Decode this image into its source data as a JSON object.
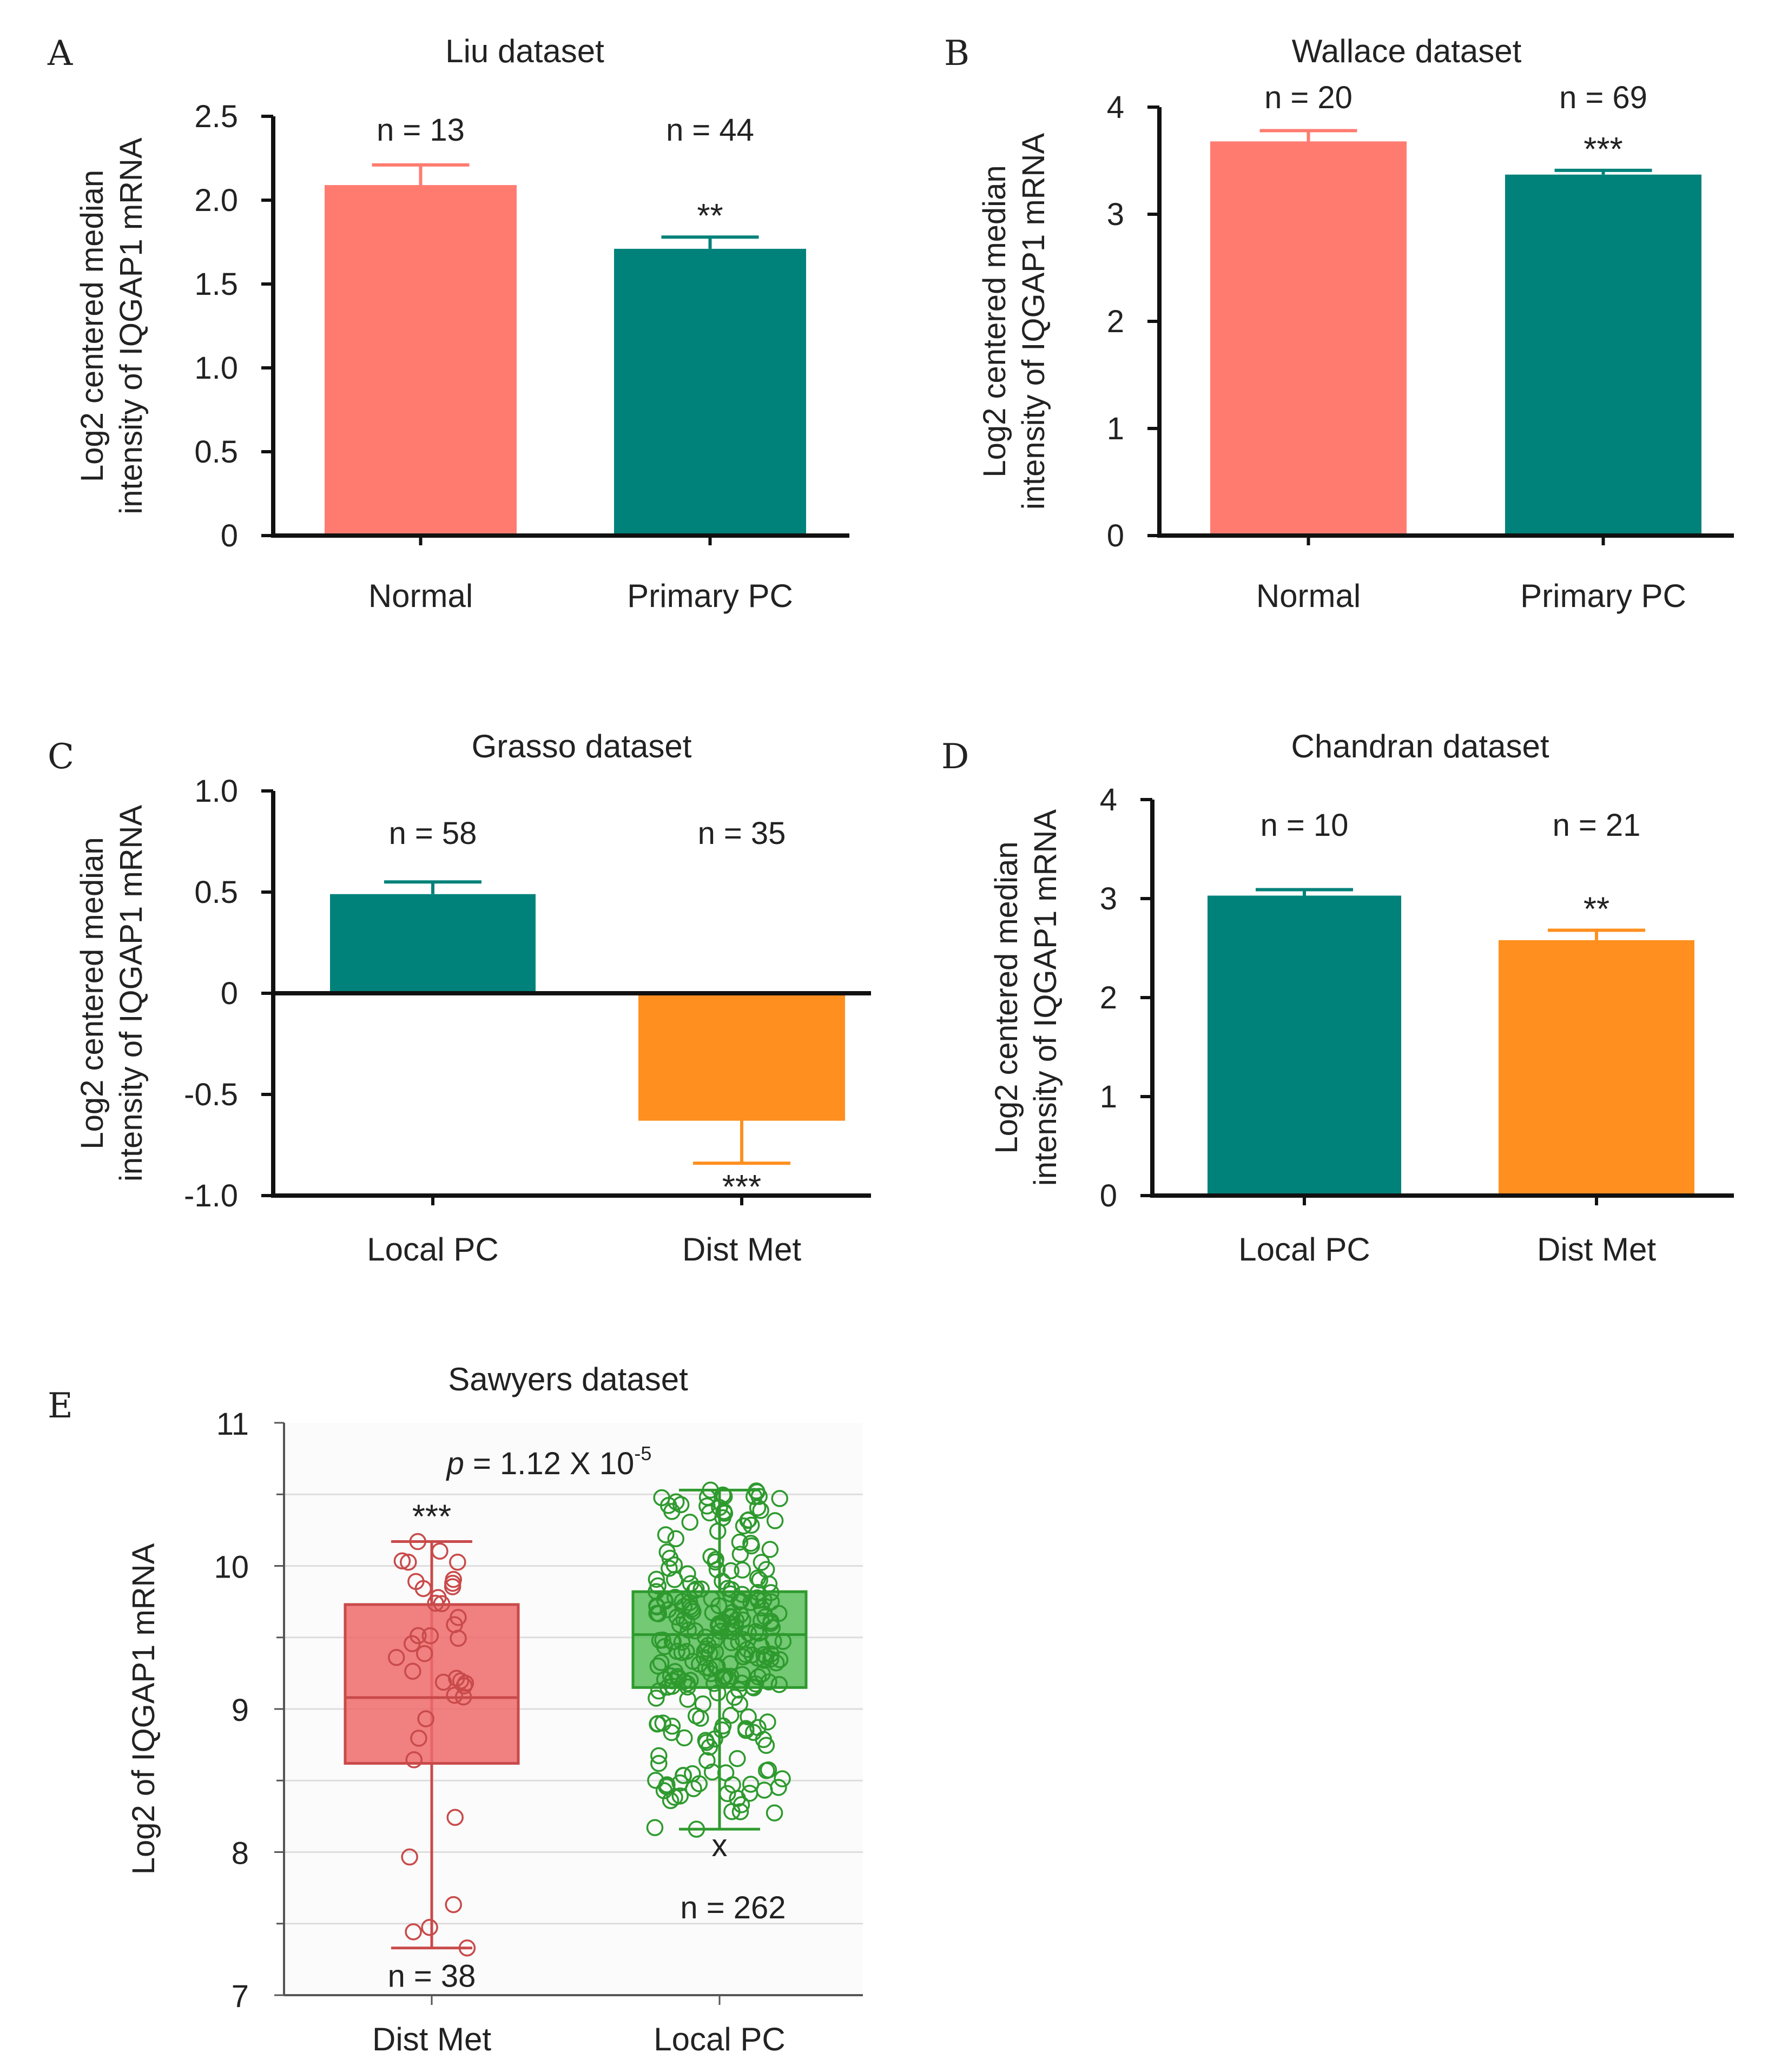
{
  "colors": {
    "salmon": "#FF7B70",
    "teal": "#00827A",
    "orange": "#FF8F1F",
    "box_red": "#EE6A6A",
    "box_red_line": "#C94A4A",
    "box_green": "#5CBF5C",
    "box_green_line": "#2E9A2E",
    "axis": "#111111"
  },
  "chart_data": [
    {
      "panel": "A",
      "type": "bar",
      "title": "Liu dataset",
      "ylabel_lines": [
        "Log2 centered median",
        "intensity of IQGAP1 mRNA"
      ],
      "ylim": [
        0,
        2.5
      ],
      "ytick_labels": [
        "0",
        "0.5",
        "1.0",
        "1.5",
        "2.0",
        "2.5"
      ],
      "ytick_values": [
        0,
        0.5,
        1.0,
        1.5,
        2.0,
        2.5
      ],
      "categories": [
        "Normal",
        "Primary PC"
      ],
      "values": [
        2.09,
        1.71
      ],
      "errors": [
        0.12,
        0.07
      ],
      "colors": [
        "salmon",
        "teal"
      ],
      "n_labels": [
        "n = 13",
        "n = 44"
      ],
      "sig": [
        "",
        "**"
      ]
    },
    {
      "panel": "B",
      "type": "bar",
      "title": "Wallace dataset",
      "ylabel_lines": [
        "Log2 centered median",
        "intensity of IQGAP1 mRNA"
      ],
      "ylim": [
        0,
        4
      ],
      "ytick_labels": [
        "0",
        "1",
        "2",
        "3",
        "4"
      ],
      "ytick_values": [
        0,
        1,
        2,
        3,
        4
      ],
      "categories": [
        "Normal",
        "Primary PC"
      ],
      "values": [
        3.68,
        3.37
      ],
      "errors": [
        0.1,
        0.04
      ],
      "colors": [
        "salmon",
        "teal"
      ],
      "n_labels": [
        "n = 20",
        "n = 69"
      ],
      "sig": [
        "",
        "***"
      ]
    },
    {
      "panel": "C",
      "type": "bar",
      "title": "Grasso dataset",
      "ylabel_lines": [
        "Log2 centered median",
        "intensity of IQGAP1 mRNA"
      ],
      "ylim": [
        -1.0,
        1.0
      ],
      "ytick_labels": [
        "-1.0",
        "-0.5",
        "0",
        "0.5",
        "1.0"
      ],
      "ytick_values": [
        -1.0,
        -0.5,
        0,
        0.5,
        1.0
      ],
      "categories": [
        "Local PC",
        "Dist Met"
      ],
      "values": [
        0.49,
        -0.63
      ],
      "errors": [
        0.06,
        0.21
      ],
      "colors": [
        "teal",
        "orange"
      ],
      "n_labels": [
        "n = 58",
        "n = 35"
      ],
      "sig": [
        "",
        "***"
      ]
    },
    {
      "panel": "D",
      "type": "bar",
      "title": "Chandran dataset",
      "ylabel_lines": [
        "Log2 centered median",
        "intensity of IQGAP1 mRNA"
      ],
      "ylim": [
        0,
        4
      ],
      "ytick_labels": [
        "0",
        "1",
        "2",
        "3",
        "4"
      ],
      "ytick_values": [
        0,
        1,
        2,
        3,
        4
      ],
      "categories": [
        "Local PC",
        "Dist Met"
      ],
      "values": [
        3.03,
        2.58
      ],
      "errors": [
        0.06,
        0.1
      ],
      "colors": [
        "teal",
        "orange"
      ],
      "n_labels": [
        "n = 10",
        "n = 21"
      ],
      "sig": [
        "",
        "**"
      ]
    },
    {
      "panel": "E",
      "type": "box",
      "title": "Sawyers dataset",
      "ylabel": "Log2 of IQGAP1 mRNA",
      "ylim": [
        7,
        11
      ],
      "ytick_labels": [
        "7",
        "8",
        "9",
        "10",
        "11"
      ],
      "ytick_values": [
        7,
        8,
        9,
        10,
        11
      ],
      "p_prefix": "p",
      "p_text": " = 1.12 X 10",
      "p_exponent": "-5",
      "categories": [
        "Dist Met",
        "Local PC"
      ],
      "boxes": [
        {
          "q1": 8.62,
          "median": 9.08,
          "q3": 9.73,
          "whisker_low": 7.33,
          "whisker_high": 10.17,
          "n_label": "n = 38",
          "sig": "***",
          "color": "box_red",
          "line": "box_red_line"
        },
        {
          "q1": 9.15,
          "median": 9.52,
          "q3": 9.82,
          "whisker_low": 8.16,
          "whisker_high": 10.53,
          "n_label": "n = 262",
          "sig": "",
          "color": "box_green",
          "line": "box_green_line"
        }
      ],
      "outlier_marker": "x"
    }
  ]
}
